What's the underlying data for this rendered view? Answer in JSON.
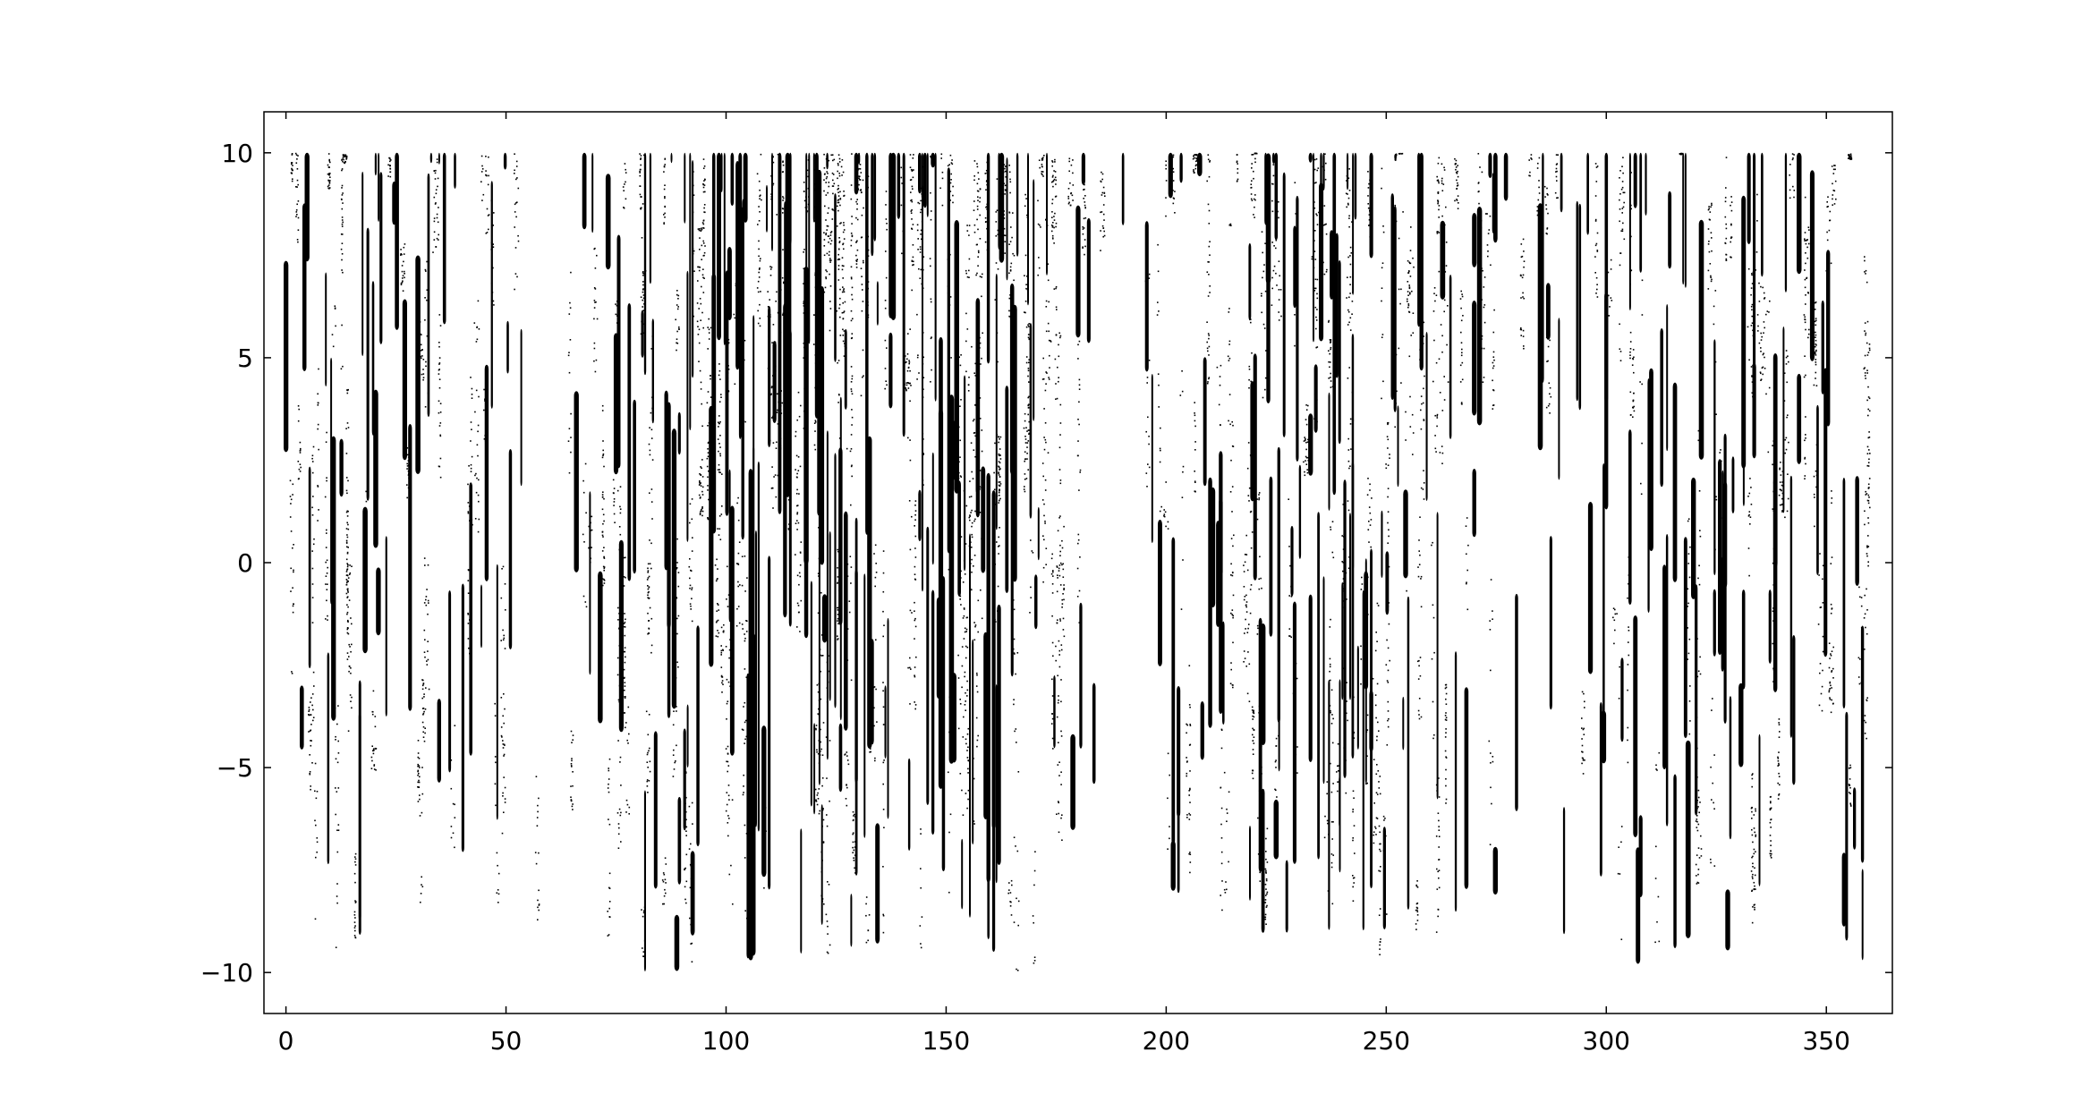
{
  "chart_data": {
    "type": "scatter",
    "title": "",
    "xlabel": "",
    "ylabel": "",
    "xlim": [
      -5,
      365
    ],
    "ylim": [
      -11,
      11
    ],
    "grid": false,
    "x_ticks": [
      0,
      50,
      100,
      150,
      200,
      250,
      300,
      350
    ],
    "y_ticks": [
      -10,
      -5,
      0,
      5,
      10
    ],
    "x_tick_labels": [
      "0",
      "50",
      "100",
      "150",
      "200",
      "250",
      "300",
      "350"
    ],
    "y_tick_labels": [
      "−10",
      "−5",
      "0",
      "5",
      "10"
    ],
    "marker_color": "#000000",
    "data_x_range": [
      0,
      360
    ],
    "data_y_range": [
      -10,
      10
    ],
    "density_profile": {
      "x": [
        0,
        5,
        10,
        20,
        30,
        40,
        50,
        55,
        65,
        70,
        80,
        90,
        100,
        110,
        120,
        130,
        140,
        150,
        160,
        170,
        180,
        187,
        192,
        200,
        210,
        220,
        230,
        240,
        250,
        260,
        270,
        280,
        290,
        300,
        310,
        320,
        330,
        340,
        350,
        360
      ],
      "coverage": [
        0.35,
        0.45,
        0.3,
        0.25,
        0.3,
        0.25,
        0.25,
        0.0,
        0.1,
        0.25,
        0.35,
        0.45,
        0.55,
        0.6,
        0.55,
        0.6,
        0.65,
        0.6,
        0.6,
        0.45,
        0.35,
        0.1,
        0.02,
        0.3,
        0.45,
        0.35,
        0.45,
        0.55,
        0.45,
        0.35,
        0.3,
        0.2,
        0.2,
        0.25,
        0.3,
        0.35,
        0.35,
        0.3,
        0.3,
        0.3
      ]
    }
  }
}
